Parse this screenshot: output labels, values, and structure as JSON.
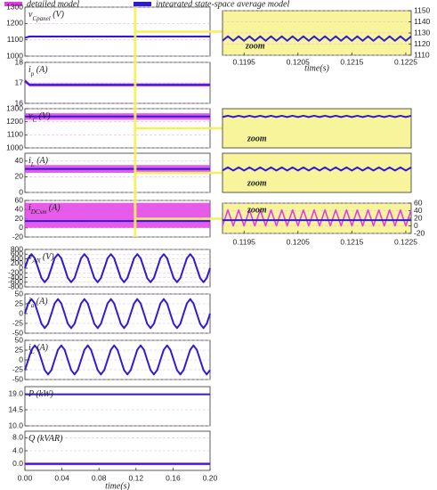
{
  "chart_data": {
    "type": "line",
    "legend": [
      {
        "name": "detailed model",
        "color": "#e23ee6"
      },
      {
        "name": "integrated state-space average model",
        "color": "#2f1bd2"
      }
    ],
    "main": {
      "xlim": [
        0,
        0.2
      ],
      "xticks": [
        {
          "value": 0,
          "label": "0.00"
        },
        0.04,
        0.08,
        0.12,
        0.16,
        {
          "value": 0.2,
          "label": "0.20"
        }
      ],
      "xlabel": "time(s)",
      "x": [
        0,
        0.0036,
        0.0071,
        0.0107,
        0.0143,
        0.0179,
        0.0214,
        0.025,
        0.0286,
        0.0321,
        0.0357,
        0.0393,
        0.0429,
        0.0464,
        0.05,
        0.0536,
        0.0571,
        0.0607,
        0.0643,
        0.0679,
        0.0714,
        0.075,
        0.0786,
        0.0821,
        0.0857,
        0.0893,
        0.0929,
        0.0964,
        0.1,
        0.1036,
        0.1071,
        0.1107,
        0.1143,
        0.1179,
        0.1214,
        0.125,
        0.1286,
        0.1321,
        0.1357,
        0.1393,
        0.1429,
        0.1464,
        0.15,
        0.1536,
        0.1571,
        0.1607,
        0.1643,
        0.1679,
        0.1714,
        0.175,
        0.1786,
        0.1821,
        0.1857,
        0.1893,
        0.1929,
        0.1964,
        0.2
      ],
      "panels": [
        {
          "label": {
            "text": "v",
            "sub": "Cpanel",
            "unit": " (V)"
          },
          "ylim": [
            1000,
            1300
          ],
          "yticks": [
            1000,
            1100,
            1200,
            1300
          ],
          "series": [
            {
              "model": 0,
              "x": [
                0,
                0.005,
                0.2
              ],
              "low": [
                1108,
                1114,
                1114
              ],
              "high": [
                1116,
                1126,
                1126
              ]
            },
            {
              "model": 1,
              "x": [
                0,
                0.005,
                0.2
              ],
              "values": [
                1112,
                1120,
                1120
              ]
            }
          ]
        },
        {
          "label": {
            "text": "i",
            "sub": "p",
            "unit": " (A)"
          },
          "ylim": [
            16,
            18
          ],
          "yticks": [
            16,
            17,
            18
          ],
          "series": [
            {
              "model": 0,
              "x": [
                0,
                0.005,
                0.2
              ],
              "low": [
                17.0,
                16.82,
                16.82
              ],
              "high": [
                17.2,
                16.98,
                16.98
              ]
            },
            {
              "model": 1,
              "x": [
                0,
                0.005,
                0.2
              ],
              "values": [
                17.1,
                16.9,
                16.9
              ]
            }
          ]
        },
        {
          "label": {
            "text": "v",
            "sub": "C",
            "unit": " (V)"
          },
          "ylim": [
            1000,
            1300
          ],
          "yticks": [
            1000,
            1100,
            1200,
            1300
          ],
          "series": [
            {
              "model": 0,
              "x": [
                0,
                0.2
              ],
              "low": [
                1215,
                1215
              ],
              "high": [
                1265,
                1265
              ]
            },
            {
              "model": 1,
              "x": [
                0,
                0.2
              ],
              "values": [
                1240,
                1240
              ]
            }
          ]
        },
        {
          "label": {
            "text": "i",
            "sub": "L",
            "unit": " (A)"
          },
          "ylim": [
            0,
            50
          ],
          "yticks": [
            0,
            20,
            40
          ],
          "series": [
            {
              "model": 0,
              "x": [
                0,
                0.2
              ],
              "low": [
                25,
                25
              ],
              "high": [
                35,
                35
              ]
            },
            {
              "model": 1,
              "x": [
                0,
                0.2
              ],
              "values": [
                30,
                30
              ]
            }
          ]
        },
        {
          "label": {
            "text": "i",
            "sub": "DCsm",
            "unit": " (A)"
          },
          "ylim": [
            -20,
            60
          ],
          "yticks": [
            -20,
            0,
            20,
            40,
            60
          ],
          "series": [
            {
              "model": 0,
              "x": [
                0,
                0.2
              ],
              "low": [
                0,
                0
              ],
              "high": [
                55,
                55
              ]
            },
            {
              "model": 1,
              "x": [
                0,
                0.2
              ],
              "values": [
                15,
                15
              ]
            }
          ]
        },
        {
          "label": {
            "text": "v",
            "sub": "AN",
            "unit": " (V)"
          },
          "ylim": [
            -800,
            800
          ],
          "yticks": [
            -800,
            -600,
            -400,
            -200,
            0,
            200,
            400,
            600,
            800
          ],
          "series": [
            {
              "model": 1,
              "values": [
                0,
                424,
                600,
                424,
                0,
                -424,
                -600,
                -424,
                0,
                424,
                600,
                424,
                0,
                -424,
                -600,
                -424,
                0,
                424,
                600,
                424,
                0,
                -424,
                -600,
                -424,
                0,
                424,
                600,
                424,
                0,
                -424,
                -600,
                -424,
                0,
                424,
                600,
                424,
                0,
                -424,
                -600,
                -424,
                0,
                424,
                600,
                424,
                0,
                -424,
                -600,
                -424,
                0,
                424,
                600,
                424,
                0,
                -424,
                -600,
                -424,
                0
              ]
            }
          ]
        },
        {
          "label": {
            "text": "i",
            "sub": "a",
            "unit": " (A)"
          },
          "ylim": [
            -50,
            50
          ],
          "yticks": [
            -50,
            -25,
            0,
            25,
            50
          ],
          "series": [
            {
              "model": 1,
              "values": [
                0,
                26,
                37,
                26,
                0,
                -26,
                -37,
                -26,
                0,
                26,
                37,
                26,
                0,
                -26,
                -37,
                -26,
                0,
                26,
                37,
                26,
                0,
                -26,
                -37,
                -26,
                0,
                26,
                37,
                26,
                0,
                -26,
                -37,
                -26,
                0,
                26,
                37,
                26,
                0,
                -26,
                -37,
                -26,
                0,
                26,
                37,
                26,
                0,
                -26,
                -37,
                -26,
                0,
                26,
                37,
                26,
                0,
                -26,
                -37,
                -26,
                0
              ]
            }
          ]
        },
        {
          "label": {
            "text": "i",
            "sub": "L",
            "unit": " (A)"
          },
          "ylim": [
            -50,
            50
          ],
          "yticks": [
            -50,
            -25,
            0,
            25,
            50
          ],
          "series": [
            {
              "model": 1,
              "values": [
                -26,
                0,
                26,
                37,
                26,
                0,
                -26,
                -37,
                -26,
                0,
                26,
                37,
                26,
                0,
                -26,
                -37,
                -26,
                0,
                26,
                37,
                26,
                0,
                -26,
                -37,
                -26,
                0,
                26,
                37,
                26,
                0,
                -26,
                -37,
                -26,
                0,
                26,
                37,
                26,
                0,
                -26,
                -37,
                -26,
                0,
                26,
                37,
                26,
                0,
                -26,
                -37,
                -26,
                0,
                26,
                37,
                26,
                0,
                -26,
                -37,
                -26
              ]
            }
          ]
        },
        {
          "label": {
            "text": "P (kW)"
          },
          "ylim": [
            10,
            21
          ],
          "yticks": [
            {
              "value": 10,
              "label": "10.0"
            },
            14.5,
            {
              "value": 19,
              "label": "19.0"
            }
          ],
          "series": [
            {
              "model": 0,
              "x": [
                0,
                0.2
              ],
              "low": [
                18.7,
                18.7
              ],
              "high": [
                19.0,
                19.0
              ]
            },
            {
              "model": 1,
              "x": [
                0,
                0.2
              ],
              "values": [
                18.85,
                18.85
              ]
            }
          ]
        },
        {
          "label": {
            "text": "Q (kVAR)"
          },
          "ylim": [
            -2,
            10
          ],
          "yticks": [
            {
              "value": 0,
              "label": "0.0"
            },
            {
              "value": 4,
              "label": "4.0"
            },
            {
              "value": 8,
              "label": "8.0"
            }
          ],
          "series": [
            {
              "model": 0,
              "x": [
                0,
                0.2
              ],
              "low": [
                -0.4,
                -0.4
              ],
              "high": [
                0.4,
                0.4
              ]
            },
            {
              "model": 1,
              "x": [
                0,
                0.2
              ],
              "values": [
                0,
                0
              ]
            }
          ]
        }
      ]
    },
    "zoom": {
      "xlim": [
        0.1191,
        0.1226
      ],
      "xticks": [
        0.1195,
        0.1205,
        0.1215,
        0.1225
      ],
      "xlabel": "time(s)",
      "zoom_label": "zoom",
      "x": [
        0.1191,
        0.1192,
        0.1193,
        0.1194,
        0.1195,
        0.1196,
        0.1197,
        0.1198,
        0.1199,
        0.12,
        0.1201,
        0.1202,
        0.1203,
        0.1204,
        0.1205,
        0.1206,
        0.1207,
        0.1208,
        0.1209,
        0.121,
        0.1211,
        0.1212,
        0.1213,
        0.1214,
        0.1215,
        0.1216,
        0.1217,
        0.1218,
        0.1219,
        0.122,
        0.1221,
        0.1222,
        0.1223,
        0.1224,
        0.1225,
        0.1226
      ],
      "panels": [
        {
          "ylim": [
            1110,
            1150
          ],
          "yticks": [
            1110,
            1120,
            1130,
            1140,
            1150
          ],
          "series": [
            {
              "model": 1,
              "values": [
                1123,
                1127,
                1123,
                1127,
                1123,
                1127,
                1123,
                1127,
                1123,
                1127,
                1123,
                1127,
                1123,
                1127,
                1123,
                1127,
                1123,
                1127,
                1123,
                1127,
                1123,
                1127,
                1123,
                1127,
                1123,
                1127,
                1123,
                1127,
                1123,
                1127,
                1123,
                1127,
                1123,
                1127,
                1123,
                1127
              ]
            }
          ]
        },
        {
          "ylim": [
            1000,
            1300
          ],
          "series": [
            {
              "model": 1,
              "values": [
                1236,
                1246,
                1236,
                1246,
                1236,
                1246,
                1236,
                1246,
                1236,
                1246,
                1236,
                1246,
                1236,
                1246,
                1236,
                1246,
                1236,
                1246,
                1236,
                1246,
                1236,
                1246,
                1236,
                1246,
                1236,
                1246,
                1236,
                1246,
                1236,
                1246,
                1236,
                1246,
                1236,
                1246,
                1236,
                1246
              ]
            }
          ]
        },
        {
          "ylim": [
            0,
            50
          ],
          "series": [
            {
              "model": 1,
              "values": [
                28,
                32,
                28,
                32,
                28,
                32,
                28,
                32,
                28,
                32,
                28,
                32,
                28,
                32,
                28,
                32,
                28,
                32,
                28,
                32,
                28,
                32,
                28,
                32,
                28,
                32,
                28,
                32,
                28,
                32,
                28,
                32,
                28,
                32,
                28,
                32
              ]
            }
          ]
        },
        {
          "ylim": [
            -20,
            60
          ],
          "yticks": [
            -20,
            0,
            20,
            40,
            60
          ],
          "series": [
            {
              "model": 0,
              "values": [
                0,
                42,
                0,
                42,
                0,
                42,
                0,
                42,
                0,
                42,
                0,
                42,
                0,
                42,
                0,
                42,
                0,
                42,
                0,
                42,
                0,
                42,
                0,
                42,
                0,
                42,
                0,
                42,
                0,
                42,
                0,
                42,
                0,
                42,
                0,
                42
              ]
            },
            {
              "model": 1,
              "x": [
                0.1191,
                0.1226
              ],
              "values": [
                15,
                15
              ]
            }
          ]
        }
      ]
    }
  }
}
